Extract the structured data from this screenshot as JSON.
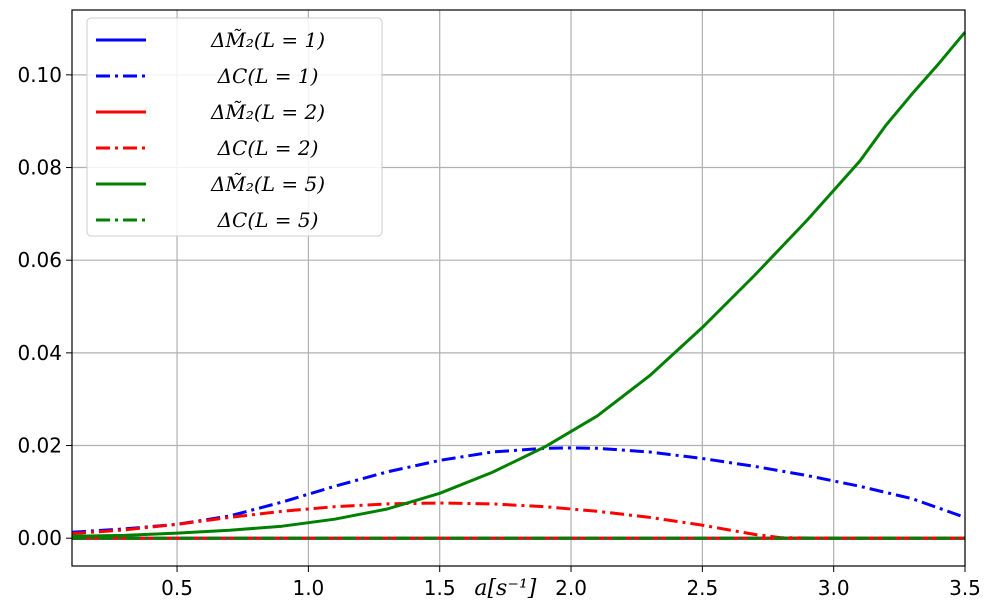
{
  "chart_data": {
    "type": "line",
    "title": "",
    "xlabel": "a[s^{-1}]",
    "xlabel_display": "a[s⁻¹]",
    "ylabel": "",
    "xlim": [
      0.1,
      3.5
    ],
    "ylim": [
      -0.006,
      0.114
    ],
    "x_ticks": [
      0.5,
      1.0,
      1.5,
      2.0,
      2.5,
      3.0,
      3.5
    ],
    "x_tick_labels": [
      "0.5",
      "1.0",
      "1.5",
      "2.0",
      "2.5",
      "3.0",
      "3.5"
    ],
    "y_ticks": [
      0.0,
      0.02,
      0.04,
      0.06,
      0.08,
      0.1
    ],
    "y_tick_labels": [
      "0.00",
      "0.02",
      "0.04",
      "0.06",
      "0.08",
      "0.10"
    ],
    "grid": true,
    "legend_position": "upper-left",
    "series": [
      {
        "name": "ΔM̃₂(L = 1)",
        "color": "#0000ff",
        "style": "solid",
        "x": [
          0.1,
          3.5
        ],
        "y": [
          0.0,
          0.0
        ]
      },
      {
        "name": "ΔC(L = 1)",
        "color": "#0000ff",
        "style": "dashdot",
        "x": [
          0.1,
          0.3,
          0.5,
          0.7,
          0.9,
          1.1,
          1.3,
          1.5,
          1.7,
          1.9,
          2.0,
          2.1,
          2.3,
          2.5,
          2.7,
          2.9,
          3.1,
          3.3,
          3.5
        ],
        "y": [
          0.0013,
          0.002,
          0.003,
          0.0048,
          0.0078,
          0.0112,
          0.0143,
          0.0168,
          0.0186,
          0.0194,
          0.0195,
          0.0194,
          0.0186,
          0.0172,
          0.0155,
          0.0135,
          0.0112,
          0.0085,
          0.0045
        ]
      },
      {
        "name": "ΔM̃₂(L = 2)",
        "color": "#ff0000",
        "style": "solid",
        "x": [
          0.1,
          3.5
        ],
        "y": [
          0.0,
          0.0
        ]
      },
      {
        "name": "ΔC(L = 2)",
        "color": "#ff0000",
        "style": "dashdot",
        "x": [
          0.1,
          0.3,
          0.5,
          0.7,
          0.9,
          1.1,
          1.3,
          1.5,
          1.7,
          1.9,
          2.1,
          2.3,
          2.5,
          2.6,
          2.7,
          2.8,
          3.0,
          3.2,
          3.5
        ],
        "y": [
          0.001,
          0.0018,
          0.003,
          0.0045,
          0.0058,
          0.0068,
          0.0074,
          0.0076,
          0.0074,
          0.0068,
          0.0058,
          0.0045,
          0.0028,
          0.0018,
          0.0008,
          0.0001,
          0.0,
          0.0,
          0.0
        ]
      },
      {
        "name": "ΔM̃₂(L = 5)",
        "color": "#008000",
        "style": "solid",
        "x": [
          0.1,
          0.3,
          0.5,
          0.7,
          0.9,
          1.1,
          1.3,
          1.5,
          1.7,
          1.9,
          2.1,
          2.3,
          2.5,
          2.7,
          2.9,
          3.1,
          3.2,
          3.3,
          3.4,
          3.5
        ],
        "y": [
          0.0004,
          0.0006,
          0.0011,
          0.0017,
          0.0026,
          0.0041,
          0.0063,
          0.0097,
          0.0142,
          0.0197,
          0.0264,
          0.0351,
          0.0455,
          0.0568,
          0.0687,
          0.0814,
          0.0892,
          0.096,
          0.1024,
          0.1092
        ]
      },
      {
        "name": "ΔC(L = 5)",
        "color": "#008000",
        "style": "dashdot",
        "x": [
          0.1,
          3.5
        ],
        "y": [
          0.0,
          0.0
        ]
      }
    ]
  }
}
